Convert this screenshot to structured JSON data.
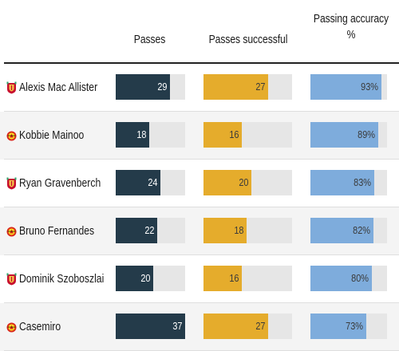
{
  "chart_data": {
    "type": "table",
    "columns": [
      "Passes",
      "Passes successful",
      "Passing accuracy %"
    ],
    "colors": {
      "passes": "#243b4a",
      "successful": "#e5ac2c",
      "accuracy": "#7eacdc",
      "track": "#e6e6e6"
    },
    "max": {
      "passes": 37,
      "successful": 37,
      "accuracy": 100
    },
    "rows": [
      {
        "player": "Alexis Mac Allister",
        "club_icon": "liverpool-crest-icon",
        "passes": 29,
        "successful": 27,
        "accuracy": 93,
        "accuracy_label": "93%"
      },
      {
        "player": "Kobbie Mainoo",
        "club_icon": "man-united-crest-icon",
        "passes": 18,
        "successful": 16,
        "accuracy": 89,
        "accuracy_label": "89%"
      },
      {
        "player": "Ryan Gravenberch",
        "club_icon": "liverpool-crest-icon",
        "passes": 24,
        "successful": 20,
        "accuracy": 83,
        "accuracy_label": "83%"
      },
      {
        "player": "Bruno Fernandes",
        "club_icon": "man-united-crest-icon",
        "passes": 22,
        "successful": 18,
        "accuracy": 82,
        "accuracy_label": "82%"
      },
      {
        "player": "Dominik Szoboszlai",
        "club_icon": "liverpool-crest-icon",
        "passes": 20,
        "successful": 16,
        "accuracy": 80,
        "accuracy_label": "80%"
      },
      {
        "player": "Casemiro",
        "club_icon": "man-united-crest-icon",
        "passes": 37,
        "successful": 27,
        "accuracy": 73,
        "accuracy_label": "73%"
      }
    ]
  }
}
